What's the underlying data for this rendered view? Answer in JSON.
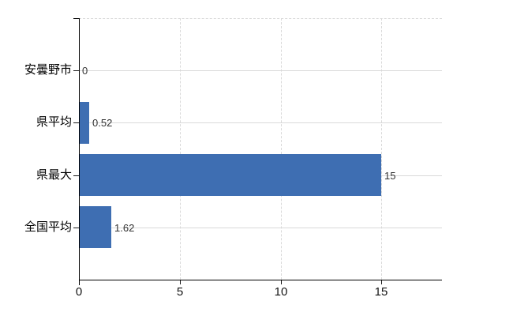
{
  "chart_data": {
    "type": "bar",
    "orientation": "horizontal",
    "title": "",
    "xlabel": "",
    "ylabel": "",
    "categories": [
      "安曇野市",
      "県平均",
      "県最大",
      "全国平均"
    ],
    "values": [
      0,
      0.52,
      15,
      1.62
    ],
    "value_labels": [
      "0",
      "0.52",
      "15",
      "1.62"
    ],
    "xlim": [
      0,
      18
    ],
    "xticks": [
      0,
      5,
      10,
      15
    ],
    "xtick_labels": [
      "0",
      "5",
      "10",
      "15"
    ],
    "legend": "none",
    "grid": {
      "horizontal": "solid line at each category center",
      "vertical": "dashed lines at x ticks",
      "top_border": "dashed"
    },
    "colors": {
      "bar": "#3e6eb2",
      "grid": "#d9d9d9",
      "axis": "#000000",
      "category_label": "#000000",
      "value_label": "#333333",
      "tick_label": "#141414",
      "background": "#ffffff"
    }
  }
}
